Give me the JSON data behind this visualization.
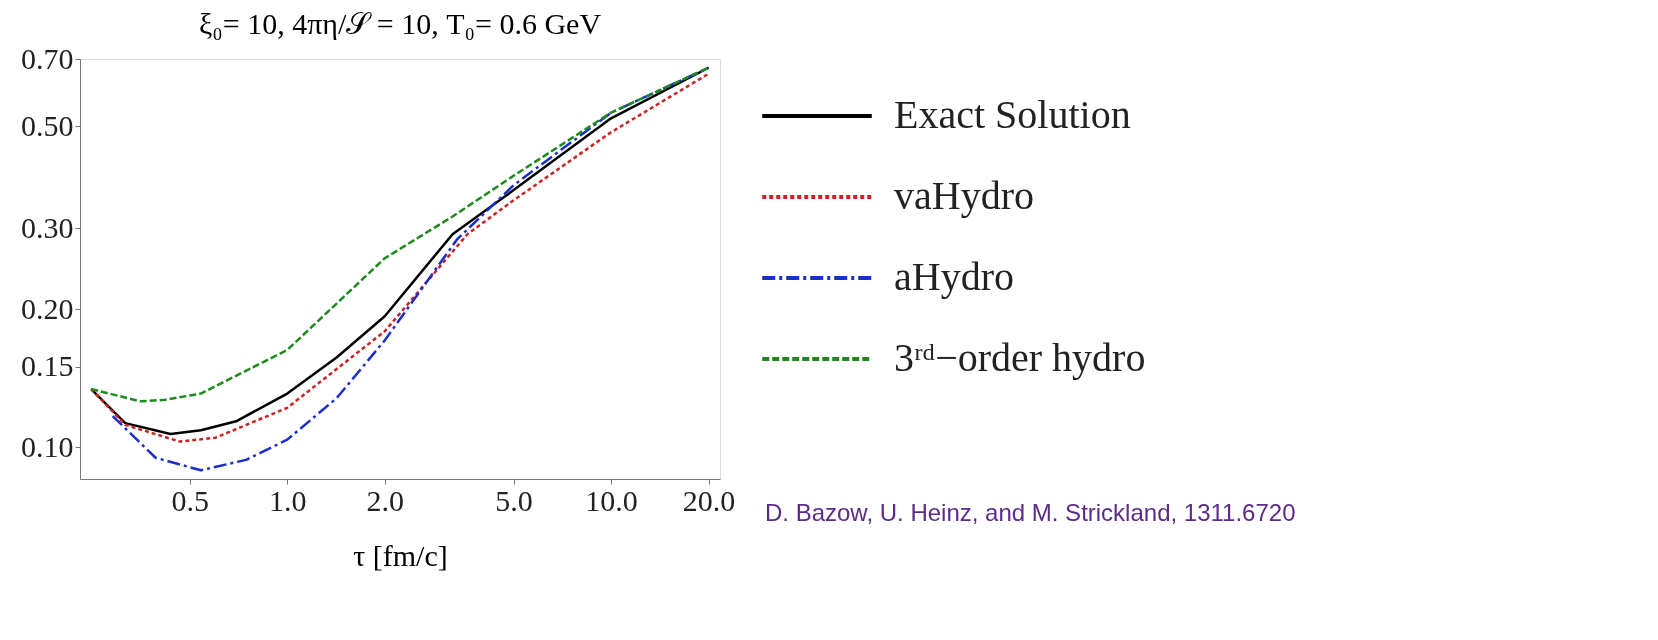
{
  "chart_data": {
    "type": "line",
    "title": "ξ₀= 10, 4πη/𝒮 = 10, T₀= 0.6 GeV",
    "xlabel": "τ [fm/c]",
    "log": "xy",
    "xlim": [
      0.229,
      21.7
    ],
    "ylim": [
      0.0854,
      0.7
    ],
    "xticks": [
      {
        "value": 0.5,
        "label": "0.5"
      },
      {
        "value": 1,
        "label": "1.0"
      },
      {
        "value": 2,
        "label": "2.0"
      },
      {
        "value": 5,
        "label": "5.0"
      },
      {
        "value": 10,
        "label": "10.0"
      },
      {
        "value": 20,
        "label": "20.0"
      }
    ],
    "yticks": [
      {
        "value": 0.1,
        "label": "0.10"
      },
      {
        "value": 0.15,
        "label": "0.15"
      },
      {
        "value": 0.2,
        "label": "0.20"
      },
      {
        "value": 0.3,
        "label": "0.30"
      },
      {
        "value": 0.5,
        "label": "0.50"
      },
      {
        "value": 0.7,
        "label": "0.70"
      }
    ],
    "grid": false,
    "legend": "right",
    "marker": "none",
    "annotations": [
      "D. Bazow, U. Heinz, and M. Strickland, 1311.6720"
    ],
    "series": [
      {
        "name": "Exact Solution",
        "color": "#000000",
        "line_style": "solid",
        "x": [
          0.248,
          0.316,
          0.436,
          0.541,
          0.695,
          1.0,
          1.42,
          2.0,
          3.24,
          5.0,
          10,
          20
        ],
        "values": [
          0.134,
          0.113,
          0.107,
          0.109,
          0.114,
          0.131,
          0.157,
          0.193,
          0.291,
          0.363,
          0.52,
          0.67
        ]
      },
      {
        "name": "vaHydro",
        "color": "#cc2222",
        "line_style": "dotted",
        "x": [
          0.248,
          0.316,
          0.466,
          0.6,
          1.0,
          2.0,
          3.6,
          5.0,
          10,
          20
        ],
        "values": [
          0.134,
          0.112,
          0.103,
          0.105,
          0.122,
          0.179,
          0.291,
          0.345,
          0.485,
          0.65
        ]
      },
      {
        "name": "aHydro",
        "color": "#1a2ecc",
        "line_style": "dashdot",
        "x": [
          0.289,
          0.392,
          0.541,
          0.746,
          1.0,
          1.42,
          2.0,
          3.35,
          5.0,
          10,
          20
        ],
        "values": [
          0.117,
          0.095,
          0.0892,
          0.094,
          0.104,
          0.128,
          0.171,
          0.284,
          0.372,
          0.535,
          0.67
        ]
      },
      {
        "name": "3ʳᵈ−order hydro",
        "color": "#1e8a1e",
        "line_style": "dashed",
        "x": [
          0.248,
          0.352,
          0.42,
          0.541,
          1.0,
          2.0,
          3.24,
          5.0,
          10,
          20
        ],
        "values": [
          0.134,
          0.126,
          0.127,
          0.131,
          0.163,
          0.258,
          0.318,
          0.39,
          0.535,
          0.67
        ]
      }
    ]
  }
}
